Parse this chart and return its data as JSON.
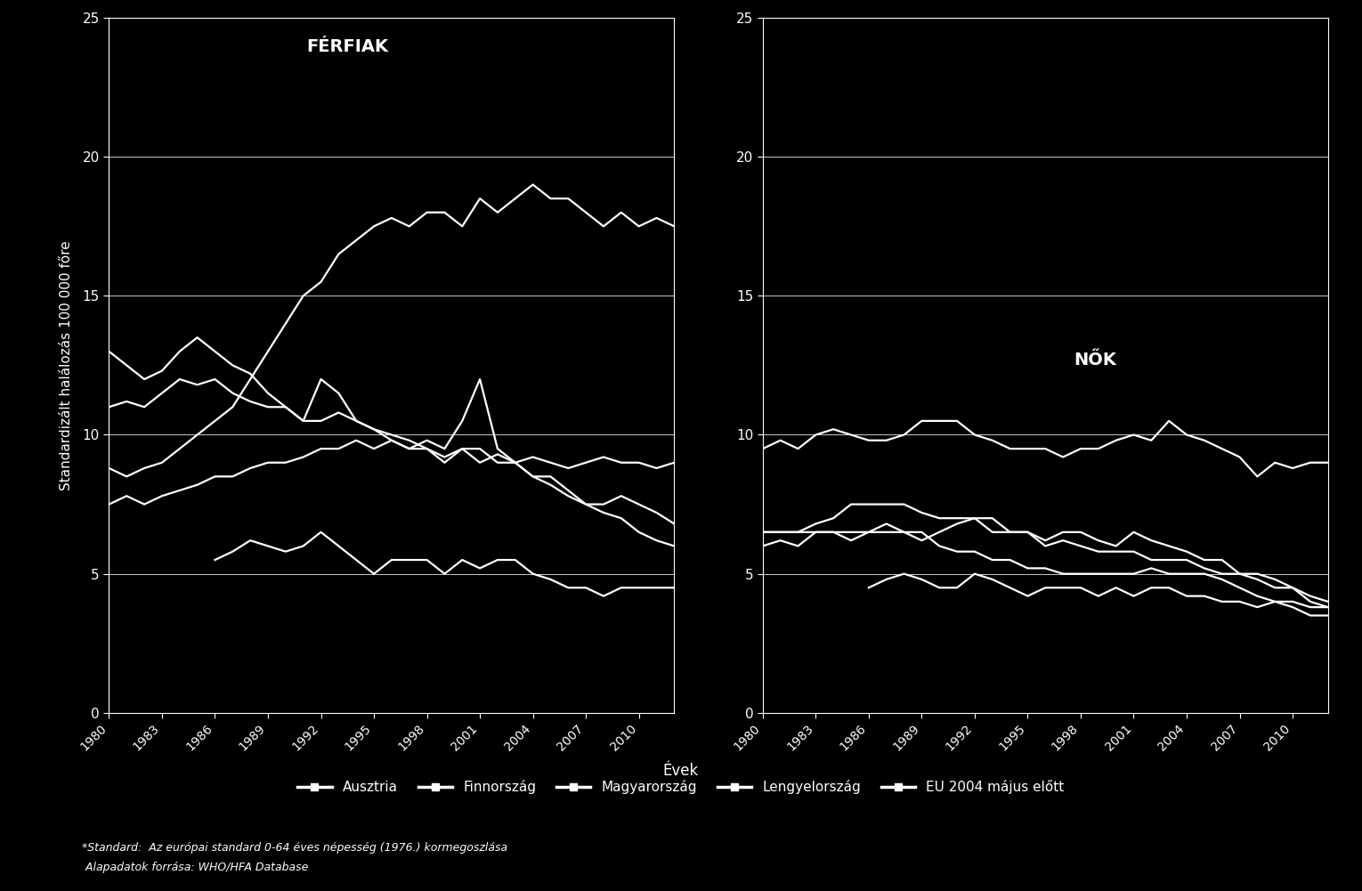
{
  "background_color": "#000000",
  "text_color": "#ffffff",
  "line_color": "#ffffff",
  "title_men": "FÉRFIAK",
  "title_women": "NŐK",
  "ylabel": "Standardizált halálozás 100 000 főre",
  "xlabel": "Évek",
  "ylim": [
    0,
    25
  ],
  "yticks": [
    0,
    5,
    10,
    15,
    20,
    25
  ],
  "footnote1": "*Standard:  Az európai standard 0-64 éves népesség (1976.) kormegoszlása",
  "footnote2": " Alapadatok forrása: WHO/HFA Database",
  "legend_labels": [
    "Ausztria",
    "Finnország",
    "Magyarország",
    "Lengyelország",
    "EU 2004 május előtt"
  ],
  "men": {
    "years": [
      1980,
      1981,
      1982,
      1983,
      1984,
      1985,
      1986,
      1987,
      1988,
      1989,
      1990,
      1991,
      1992,
      1993,
      1994,
      1995,
      1996,
      1997,
      1998,
      1999,
      2000,
      2001,
      2002,
      2003,
      2004,
      2005,
      2006,
      2007,
      2008,
      2009,
      2010,
      2011,
      2012
    ],
    "austria": [
      13.0,
      12.5,
      12.0,
      12.3,
      13.0,
      13.5,
      13.0,
      12.5,
      12.2,
      11.5,
      11.0,
      10.5,
      10.5,
      10.8,
      10.5,
      10.2,
      10.0,
      9.8,
      9.5,
      9.2,
      9.5,
      9.0,
      9.3,
      9.0,
      8.5,
      8.2,
      7.8,
      7.5,
      7.2,
      7.0,
      6.5,
      6.2,
      6.0
    ],
    "finland": [
      11.0,
      11.2,
      11.0,
      11.5,
      12.0,
      11.8,
      12.0,
      11.5,
      11.2,
      11.0,
      11.0,
      10.5,
      12.0,
      11.5,
      10.5,
      10.2,
      9.8,
      9.5,
      9.8,
      9.5,
      10.5,
      12.0,
      9.5,
      9.0,
      8.5,
      8.5,
      8.0,
      7.5,
      7.5,
      7.8,
      7.5,
      7.2,
      6.8
    ],
    "hungary": [
      8.8,
      8.5,
      8.8,
      9.0,
      9.5,
      10.0,
      10.5,
      11.0,
      12.0,
      13.0,
      14.0,
      15.0,
      15.5,
      16.5,
      17.0,
      17.5,
      17.8,
      17.5,
      18.0,
      18.0,
      17.5,
      18.5,
      18.0,
      18.5,
      19.0,
      18.5,
      18.5,
      18.0,
      17.5,
      18.0,
      17.5,
      17.8,
      17.5
    ],
    "poland": [
      7.5,
      7.8,
      7.5,
      7.8,
      8.0,
      8.2,
      8.5,
      8.5,
      8.8,
      9.0,
      9.0,
      9.2,
      9.5,
      9.5,
      9.8,
      9.5,
      9.8,
      9.5,
      9.5,
      9.0,
      9.5,
      9.5,
      9.0,
      9.0,
      9.2,
      9.0,
      8.8,
      9.0,
      9.2,
      9.0,
      9.0,
      8.8,
      9.0
    ],
    "eu2004": [
      null,
      null,
      null,
      null,
      null,
      null,
      5.5,
      5.8,
      6.2,
      6.0,
      5.8,
      6.0,
      6.5,
      6.0,
      5.5,
      5.0,
      5.5,
      5.5,
      5.5,
      5.0,
      5.5,
      5.2,
      5.5,
      5.5,
      5.0,
      4.8,
      4.5,
      4.5,
      4.2,
      4.5,
      4.5,
      4.5,
      4.5
    ]
  },
  "women": {
    "years": [
      1980,
      1981,
      1982,
      1983,
      1984,
      1985,
      1986,
      1987,
      1988,
      1989,
      1990,
      1991,
      1992,
      1993,
      1994,
      1995,
      1996,
      1997,
      1998,
      1999,
      2000,
      2001,
      2002,
      2003,
      2004,
      2005,
      2006,
      2007,
      2008,
      2009,
      2010,
      2011,
      2012
    ],
    "austria": [
      9.5,
      9.8,
      9.5,
      10.0,
      10.2,
      10.0,
      9.8,
      9.8,
      10.0,
      10.5,
      10.5,
      10.5,
      10.0,
      9.8,
      9.5,
      9.5,
      9.5,
      9.2,
      9.5,
      9.5,
      9.8,
      10.0,
      9.8,
      10.5,
      10.0,
      9.8,
      9.5,
      9.2,
      8.5,
      9.0,
      8.8,
      9.0,
      9.0
    ],
    "finland": [
      6.0,
      6.2,
      6.0,
      6.5,
      6.5,
      6.2,
      6.5,
      6.8,
      6.5,
      6.2,
      6.5,
      6.8,
      7.0,
      7.0,
      6.5,
      6.5,
      6.2,
      6.5,
      6.5,
      6.2,
      6.0,
      6.5,
      6.2,
      6.0,
      5.8,
      5.5,
      5.5,
      5.0,
      4.8,
      4.5,
      4.5,
      4.2,
      4.0
    ],
    "hungary": [
      6.5,
      6.5,
      6.5,
      6.8,
      7.0,
      7.5,
      7.5,
      7.5,
      7.5,
      7.2,
      7.0,
      7.0,
      7.0,
      6.5,
      6.5,
      6.5,
      6.0,
      6.2,
      6.0,
      5.8,
      5.8,
      5.8,
      5.5,
      5.5,
      5.5,
      5.2,
      5.0,
      5.0,
      5.0,
      4.8,
      4.5,
      4.0,
      3.8
    ],
    "poland": [
      6.5,
      6.5,
      6.5,
      6.5,
      6.5,
      6.5,
      6.5,
      6.5,
      6.5,
      6.5,
      6.0,
      5.8,
      5.8,
      5.5,
      5.5,
      5.2,
      5.2,
      5.0,
      5.0,
      5.0,
      5.0,
      5.0,
      5.2,
      5.0,
      5.0,
      5.0,
      4.8,
      4.5,
      4.2,
      4.0,
      3.8,
      3.5,
      3.5
    ],
    "eu2004": [
      null,
      null,
      null,
      null,
      null,
      null,
      4.5,
      4.8,
      5.0,
      4.8,
      4.5,
      4.5,
      5.0,
      4.8,
      4.5,
      4.2,
      4.5,
      4.5,
      4.5,
      4.2,
      4.5,
      4.2,
      4.5,
      4.5,
      4.2,
      4.2,
      4.0,
      4.0,
      3.8,
      4.0,
      4.0,
      3.8,
      3.8
    ]
  }
}
